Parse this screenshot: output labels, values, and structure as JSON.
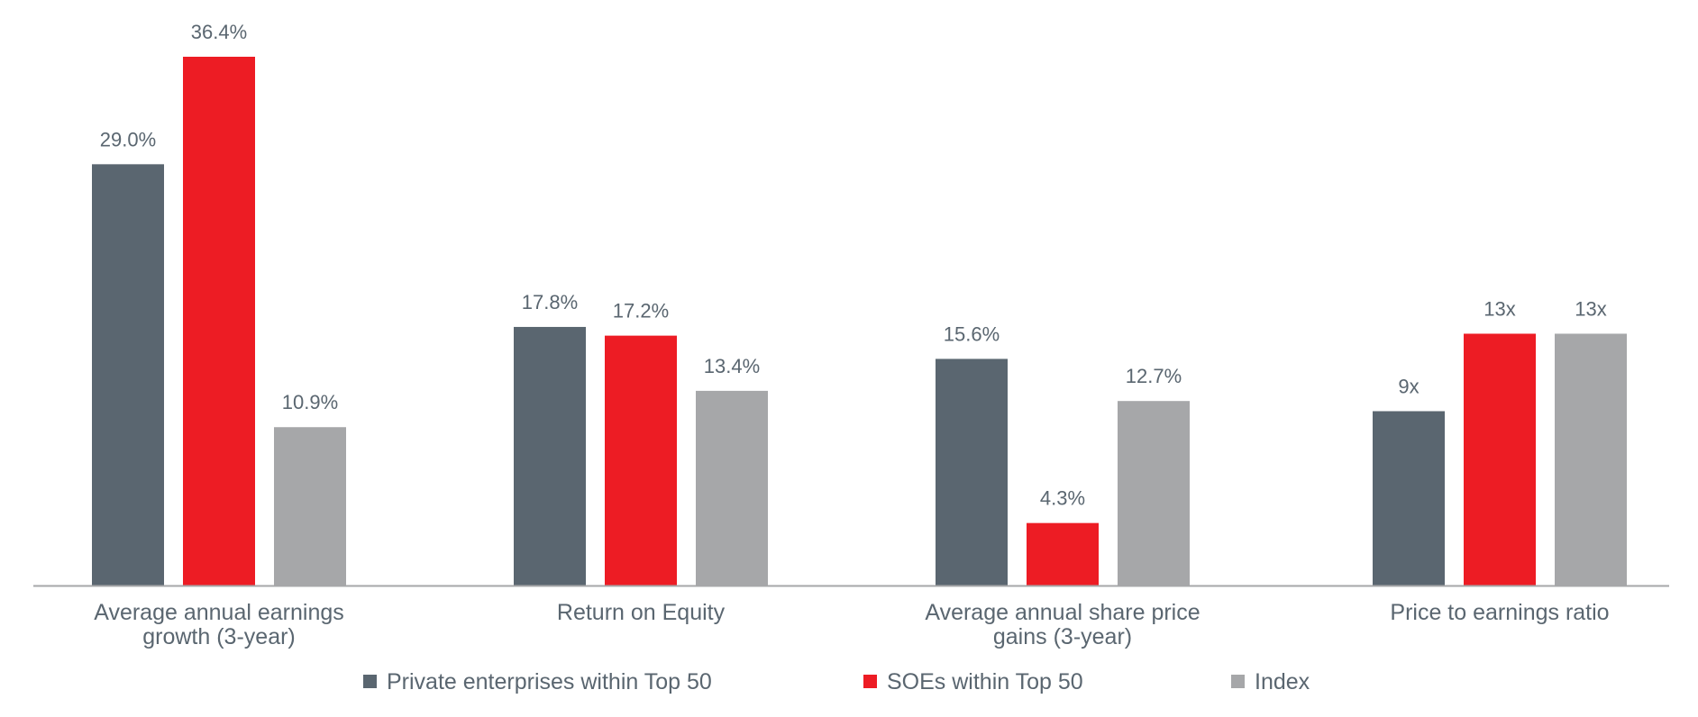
{
  "chart_data": {
    "type": "bar",
    "title": "",
    "categories": [
      [
        "Average annual earnings",
        "growth (3-year)"
      ],
      [
        "Return on Equity"
      ],
      [
        "Average annual share price",
        "gains (3-year)"
      ],
      [
        "Price to earnings ratio"
      ]
    ],
    "series": [
      {
        "name": "Private enterprises within Top 50",
        "color": "#5a6670",
        "values": [
          29.0,
          17.8,
          15.6,
          9
        ],
        "labels": [
          "29.0%",
          "17.8%",
          "15.6%",
          "9x"
        ]
      },
      {
        "name": "SOEs within Top 50",
        "color": "#ed1c24",
        "values": [
          36.4,
          17.2,
          4.3,
          13
        ],
        "labels": [
          "36.4%",
          "17.2%",
          "4.3%",
          "13x"
        ]
      },
      {
        "name": "Index",
        "color": "#a6a7a9",
        "values": [
          10.9,
          13.4,
          12.7,
          13
        ],
        "labels": [
          "10.9%",
          "13.4%",
          "12.7%",
          "13x"
        ]
      }
    ],
    "group_scale_max": [
      36.4,
      36.4,
      36.4,
      27.3
    ],
    "legend_position": "bottom",
    "grid": false,
    "axis_color": "#a6a7a9",
    "label_color": "#5a6670"
  }
}
